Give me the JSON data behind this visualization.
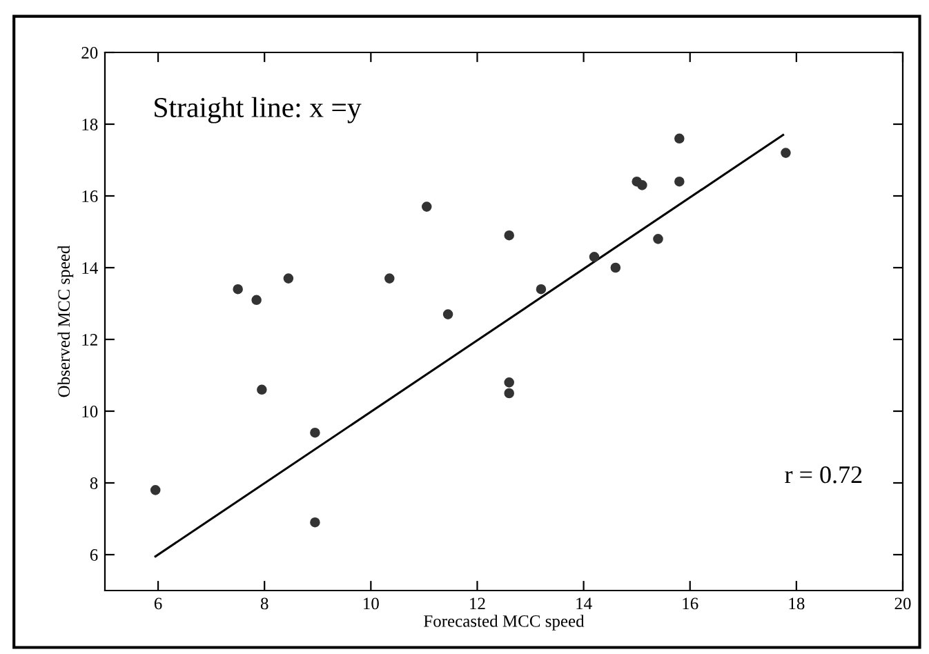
{
  "chart_data": {
    "type": "scatter",
    "xlabel": "Forecasted MCC speed",
    "ylabel": "Observed MCC speed",
    "xlim": [
      5,
      20
    ],
    "ylim": [
      5,
      20
    ],
    "xticks": [
      6,
      8,
      10,
      12,
      14,
      16,
      18,
      20
    ],
    "yticks": [
      6,
      8,
      10,
      12,
      14,
      16,
      18,
      20
    ],
    "grid": false,
    "marker": "circle",
    "series": [
      {
        "color": "#333333",
        "x": [
          5.95,
          7.5,
          7.85,
          7.95,
          8.45,
          8.95,
          8.95,
          10.35,
          11.05,
          11.45,
          12.6,
          12.6,
          12.6,
          13.2,
          14.2,
          14.6,
          15.0,
          15.1,
          15.4,
          15.8,
          15.8,
          17.8
        ],
        "values": [
          7.8,
          13.4,
          13.1,
          10.6,
          13.7,
          9.4,
          6.9,
          13.7,
          15.7,
          12.7,
          14.9,
          10.8,
          10.5,
          13.4,
          14.3,
          14.0,
          16.4,
          16.3,
          14.8,
          17.6,
          16.4,
          17.2
        ]
      },
      {
        "type": "line",
        "color": "#000000",
        "marker": "none",
        "line_style": "solid",
        "x": [
          5.95,
          17.75
        ],
        "values": [
          5.95,
          17.7
        ]
      }
    ],
    "annotations": [
      "Straight line: x =y",
      "r = 0.72"
    ]
  }
}
